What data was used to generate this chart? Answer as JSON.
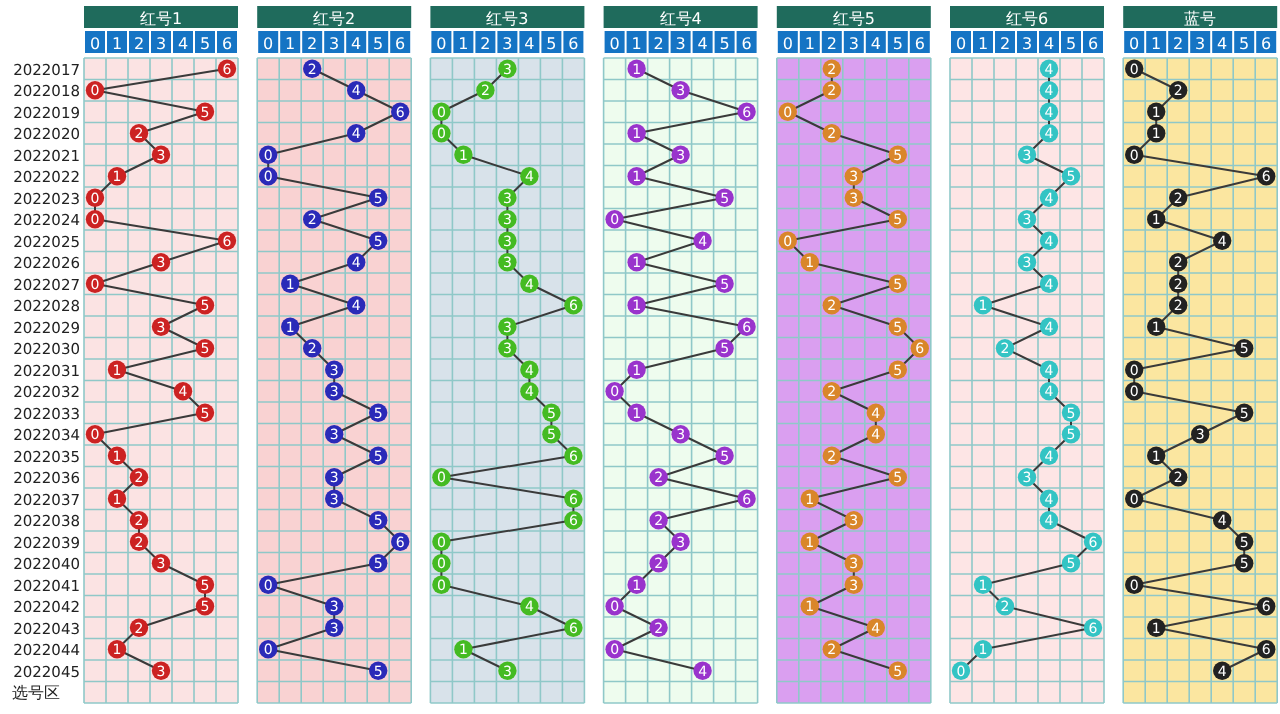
{
  "chart_data": [
    {
      "type": "line",
      "orientation": "horizontal",
      "title": "红号1",
      "categories": [
        "2022017",
        "2022018",
        "2022019",
        "2022020",
        "2022021",
        "2022022",
        "2022023",
        "2022024",
        "2022025",
        "2022026",
        "2022027",
        "2022028",
        "2022029",
        "2022030",
        "2022031",
        "2022032",
        "2022033",
        "2022034",
        "2022035",
        "2022036",
        "2022037",
        "2022038",
        "2022039",
        "2022040",
        "2022041",
        "2022042",
        "2022043",
        "2022044",
        "2022045"
      ],
      "series": [
        {
          "color": "#cc2222",
          "values": [
            6,
            0,
            5,
            2,
            3,
            1,
            0,
            0,
            6,
            3,
            0,
            5,
            3,
            5,
            1,
            4,
            5,
            0,
            1,
            2,
            1,
            2,
            2,
            3,
            5,
            5,
            2,
            1,
            3
          ]
        }
      ],
      "xlim": [
        -0.5,
        6.5
      ],
      "xticks": [
        0,
        1,
        2,
        3,
        4,
        5,
        6
      ],
      "grid": true,
      "marker": "circle",
      "data_labels": true,
      "annotations": [
        "选号区"
      ]
    },
    {
      "type": "line",
      "orientation": "horizontal",
      "title": "红号2",
      "categories": [
        "2022017",
        "2022018",
        "2022019",
        "2022020",
        "2022021",
        "2022022",
        "2022023",
        "2022024",
        "2022025",
        "2022026",
        "2022027",
        "2022028",
        "2022029",
        "2022030",
        "2022031",
        "2022032",
        "2022033",
        "2022034",
        "2022035",
        "2022036",
        "2022037",
        "2022038",
        "2022039",
        "2022040",
        "2022041",
        "2022042",
        "2022043",
        "2022044",
        "2022045"
      ],
      "series": [
        {
          "color": "#2a2ab8",
          "values": [
            2,
            4,
            6,
            4,
            0,
            0,
            5,
            2,
            5,
            4,
            1,
            4,
            1,
            2,
            3,
            3,
            5,
            3,
            5,
            3,
            3,
            5,
            6,
            5,
            0,
            3,
            3,
            0,
            5
          ]
        }
      ],
      "xlim": [
        -0.5,
        6.5
      ],
      "xticks": [
        0,
        1,
        2,
        3,
        4,
        5,
        6
      ],
      "grid": true,
      "marker": "circle",
      "data_labels": true,
      "tick_labels": "x"
    },
    {
      "type": "line",
      "orientation": "horizontal",
      "title": "红号3",
      "categories": [
        "2022017",
        "2022018",
        "2022019",
        "2022020",
        "2022021",
        "2022022",
        "2022023",
        "2022024",
        "2022025",
        "2022026",
        "2022027",
        "2022028",
        "2022029",
        "2022030",
        "2022031",
        "2022032",
        "2022033",
        "2022034",
        "2022035",
        "2022036",
        "2022037",
        "2022038",
        "2022039",
        "2022040",
        "2022041",
        "2022042",
        "2022043",
        "2022044",
        "2022045"
      ],
      "series": [
        {
          "color": "#44bb22",
          "values": [
            3,
            2,
            0,
            0,
            1,
            4,
            3,
            3,
            3,
            3,
            4,
            6,
            3,
            3,
            4,
            4,
            5,
            5,
            6,
            0,
            6,
            6,
            0,
            0,
            0,
            4,
            6,
            1,
            3
          ]
        }
      ],
      "xlim": [
        -0.5,
        6.5
      ],
      "xticks": [
        0,
        1,
        2,
        3,
        4,
        5,
        6
      ],
      "grid": true,
      "marker": "circle",
      "data_labels": true,
      "tick_labels": "x"
    },
    {
      "type": "line",
      "orientation": "horizontal",
      "title": "红号4",
      "categories": [
        "2022017",
        "2022018",
        "2022019",
        "2022020",
        "2022021",
        "2022022",
        "2022023",
        "2022024",
        "2022025",
        "2022026",
        "2022027",
        "2022028",
        "2022029",
        "2022030",
        "2022031",
        "2022032",
        "2022033",
        "2022034",
        "2022035",
        "2022036",
        "2022037",
        "2022038",
        "2022039",
        "2022040",
        "2022041",
        "2022042",
        "2022043",
        "2022044",
        "2022045"
      ],
      "series": [
        {
          "color": "#9933cc",
          "values": [
            1,
            3,
            6,
            1,
            3,
            1,
            5,
            0,
            4,
            1,
            5,
            1,
            6,
            5,
            1,
            0,
            1,
            3,
            5,
            2,
            6,
            2,
            3,
            2,
            1,
            0,
            2,
            0,
            4
          ]
        }
      ],
      "xlim": [
        -0.5,
        6.5
      ],
      "xticks": [
        0,
        1,
        2,
        3,
        4,
        5,
        6
      ],
      "grid": true,
      "marker": "circle",
      "data_labels": true,
      "tick_labels": "x"
    },
    {
      "type": "line",
      "orientation": "horizontal",
      "title": "红号5",
      "categories": [
        "2022017",
        "2022018",
        "2022019",
        "2022020",
        "2022021",
        "2022022",
        "2022023",
        "2022024",
        "2022025",
        "2022026",
        "2022027",
        "2022028",
        "2022029",
        "2022030",
        "2022031",
        "2022032",
        "2022033",
        "2022034",
        "2022035",
        "2022036",
        "2022037",
        "2022038",
        "2022039",
        "2022040",
        "2022041",
        "2022042",
        "2022043",
        "2022044",
        "2022045"
      ],
      "series": [
        {
          "color": "#d9862a",
          "values": [
            2,
            2,
            0,
            2,
            5,
            3,
            3,
            5,
            0,
            1,
            5,
            2,
            5,
            6,
            5,
            2,
            4,
            4,
            2,
            5,
            1,
            3,
            1,
            3,
            3,
            1,
            4,
            2,
            5
          ]
        }
      ],
      "xlim": [
        -0.5,
        6.5
      ],
      "xticks": [
        0,
        1,
        2,
        3,
        4,
        5,
        6
      ],
      "grid": true,
      "marker": "circle",
      "data_labels": true,
      "tick_labels": "x"
    },
    {
      "type": "line",
      "orientation": "horizontal",
      "title": "红号6",
      "categories": [
        "2022017",
        "2022018",
        "2022019",
        "2022020",
        "2022021",
        "2022022",
        "2022023",
        "2022024",
        "2022025",
        "2022026",
        "2022027",
        "2022028",
        "2022029",
        "2022030",
        "2022031",
        "2022032",
        "2022033",
        "2022034",
        "2022035",
        "2022036",
        "2022037",
        "2022038",
        "2022039",
        "2022040",
        "2022041",
        "2022042",
        "2022043",
        "2022044",
        "2022045"
      ],
      "series": [
        {
          "color": "#33c4c4",
          "values": [
            4,
            4,
            4,
            4,
            3,
            5,
            4,
            3,
            4,
            3,
            4,
            1,
            4,
            2,
            4,
            4,
            5,
            5,
            4,
            3,
            4,
            4,
            6,
            5,
            1,
            2,
            6,
            1,
            0
          ]
        }
      ],
      "xlim": [
        -0.5,
        6.5
      ],
      "xticks": [
        0,
        1,
        2,
        3,
        4,
        5,
        6
      ],
      "grid": true,
      "marker": "circle",
      "data_labels": true,
      "tick_labels": "x"
    },
    {
      "type": "line",
      "orientation": "horizontal",
      "title": "蓝号",
      "categories": [
        "2022017",
        "2022018",
        "2022019",
        "2022020",
        "2022021",
        "2022022",
        "2022023",
        "2022024",
        "2022025",
        "2022026",
        "2022027",
        "2022028",
        "2022029",
        "2022030",
        "2022031",
        "2022032",
        "2022033",
        "2022034",
        "2022035",
        "2022036",
        "2022037",
        "2022038",
        "2022039",
        "2022040",
        "2022041",
        "2022042",
        "2022043",
        "2022044",
        "2022045"
      ],
      "series": [
        {
          "color": "#222222",
          "values": [
            0,
            2,
            1,
            1,
            0,
            6,
            2,
            1,
            4,
            2,
            2,
            2,
            1,
            5,
            0,
            0,
            5,
            3,
            1,
            2,
            0,
            4,
            5,
            5,
            0,
            6,
            1,
            6,
            4
          ]
        }
      ],
      "xlim": [
        -0.5,
        6.5
      ],
      "xticks": [
        0,
        1,
        2,
        3,
        4,
        5,
        6
      ],
      "grid": true,
      "marker": "circle",
      "data_labels": true,
      "tick_labels": "x"
    }
  ]
}
